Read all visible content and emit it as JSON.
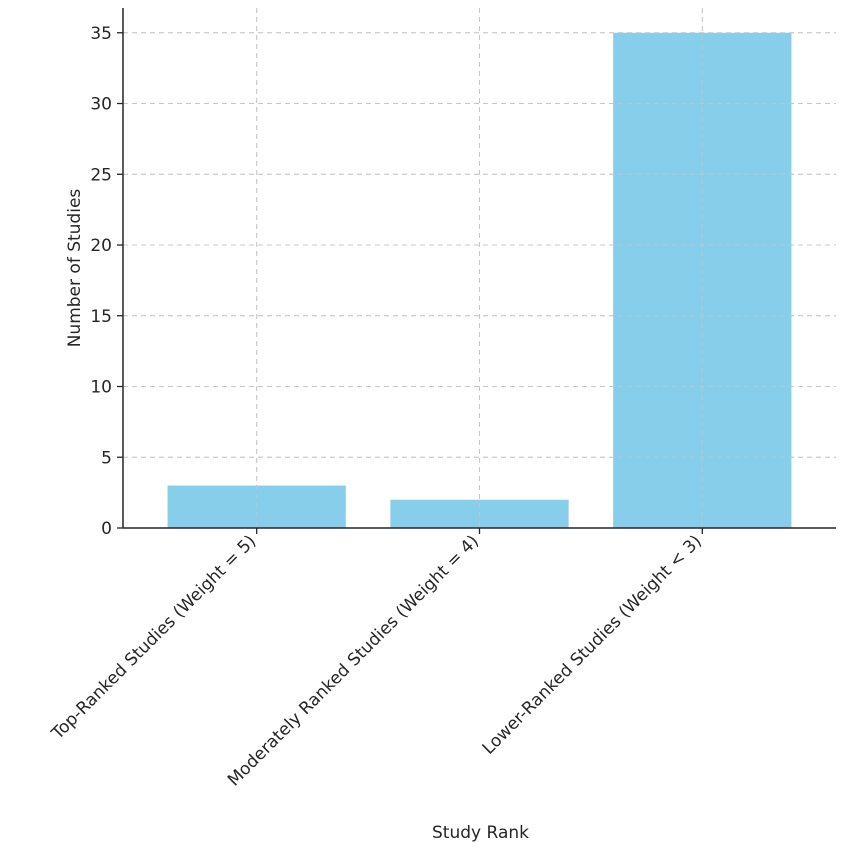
{
  "chart_data": {
    "type": "bar",
    "title": "",
    "xlabel": "Study Rank",
    "ylabel": "Number of Studies",
    "categories": [
      "Top-Ranked Studies (Weight = 5)",
      "Moderately Ranked Studies (Weight = 4)",
      "Lower-Ranked Studies (Weight < 3)"
    ],
    "values": [
      3,
      2,
      35
    ],
    "ylim": [
      0,
      36.75
    ],
    "yticks": [
      0,
      5,
      10,
      15,
      20,
      25,
      30,
      35
    ],
    "grid": true,
    "bar_color": "#87ceeb",
    "legend": "none"
  }
}
